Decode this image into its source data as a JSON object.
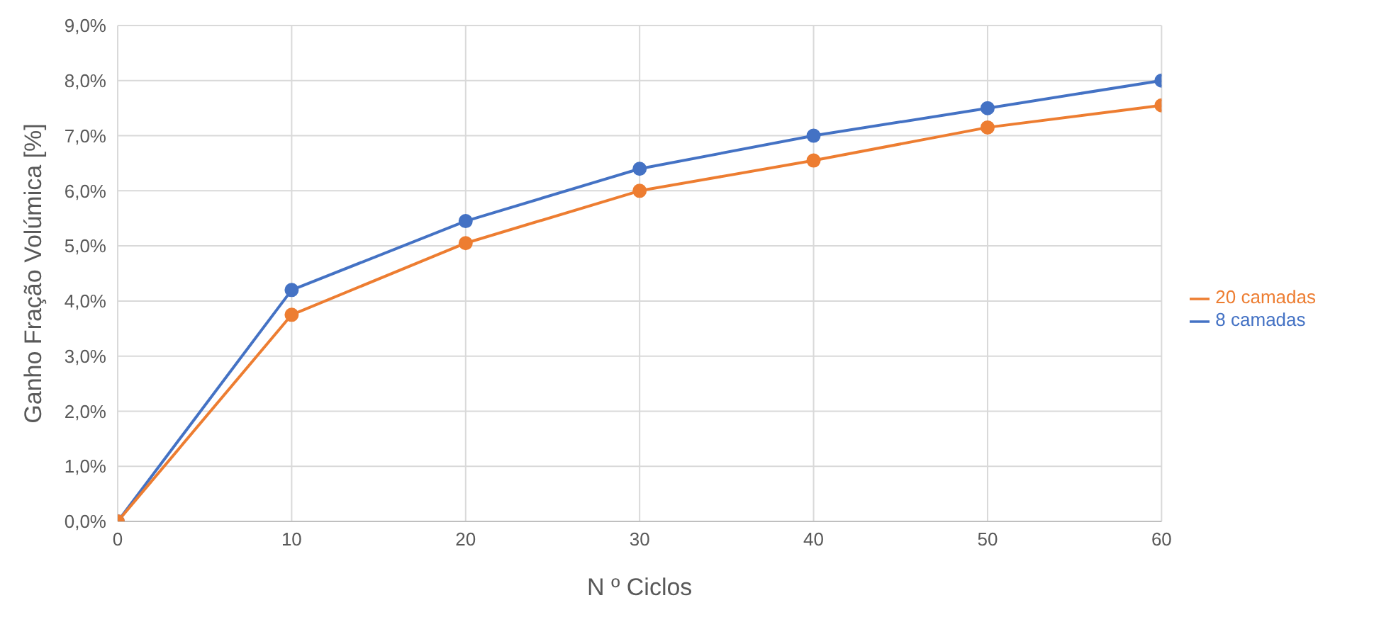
{
  "chart_data": {
    "type": "line",
    "xlabel": "N º Ciclos",
    "ylabel": "Ganho Fração Volúmica [%]",
    "x": [
      0,
      10,
      20,
      30,
      40,
      50,
      60
    ],
    "series": [
      {
        "name": "8 camadas",
        "color": "#4472c4",
        "values": [
          0,
          4.2,
          5.45,
          6.4,
          7.0,
          7.5,
          8.0
        ]
      },
      {
        "name": "20 camadas",
        "color": "#ed7d31",
        "values": [
          0,
          3.75,
          5.05,
          6.0,
          6.55,
          7.15,
          7.55
        ]
      }
    ],
    "xlim": [
      0,
      60
    ],
    "xticks": [
      0,
      10,
      20,
      30,
      40,
      50,
      60
    ],
    "ylim": [
      0,
      9
    ],
    "yticks": [
      {
        "value": 0,
        "label": "0,0%"
      },
      {
        "value": 1,
        "label": "1,0%"
      },
      {
        "value": 2,
        "label": "2,0%"
      },
      {
        "value": 3,
        "label": "3,0%"
      },
      {
        "value": 4,
        "label": "4,0%"
      },
      {
        "value": 5,
        "label": "5,0%"
      },
      {
        "value": 6,
        "label": "6,0%"
      },
      {
        "value": 7,
        "label": "7,0%"
      },
      {
        "value": 8,
        "label": "8,0%"
      },
      {
        "value": 9,
        "label": "9,0%"
      }
    ],
    "grid": true,
    "legend": "right",
    "marker": "circle",
    "line_style": "solid"
  }
}
